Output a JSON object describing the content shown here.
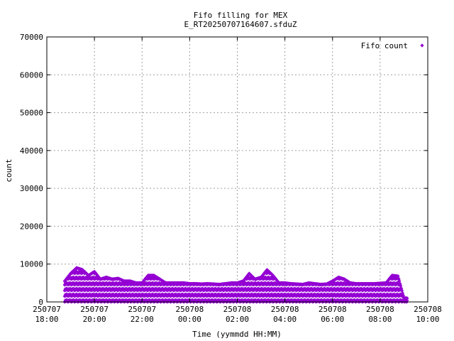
{
  "chart_data": {
    "type": "scatter",
    "title": "Fifo filling for MEX",
    "subtitle": "E_RT20250707164607.sfduZ",
    "xlabel": "Time (yymmdd HH:MM)",
    "ylabel": "count",
    "xlim_hours": [
      18,
      34
    ],
    "ylim": [
      0,
      70000
    ],
    "y_ticks": [
      "0",
      "10000",
      "20000",
      "30000",
      "40000",
      "50000",
      "60000",
      "70000"
    ],
    "x_ticks": [
      {
        "date": "250707",
        "time": "18:00"
      },
      {
        "date": "250707",
        "time": "20:00"
      },
      {
        "date": "250707",
        "time": "22:00"
      },
      {
        "date": "250708",
        "time": "00:00"
      },
      {
        "date": "250708",
        "time": "02:00"
      },
      {
        "date": "250708",
        "time": "04:00"
      },
      {
        "date": "250708",
        "time": "06:00"
      },
      {
        "date": "250708",
        "time": "08:00"
      },
      {
        "date": "250708",
        "time": "10:00"
      }
    ],
    "grid": true,
    "legend_position": "top-right",
    "series": [
      {
        "name": "Fifo count",
        "color": "#9400d3",
        "marker": "diamond",
        "x_hours": [
          18.75,
          19.0,
          19.25,
          19.5,
          19.75,
          20.0,
          20.25,
          20.5,
          20.75,
          21.0,
          21.25,
          21.5,
          21.75,
          22.0,
          22.25,
          22.5,
          22.75,
          23.0,
          23.25,
          23.5,
          23.75,
          24.0,
          24.25,
          24.5,
          24.75,
          25.0,
          25.25,
          25.5,
          25.75,
          26.0,
          26.25,
          26.5,
          26.75,
          27.0,
          27.25,
          27.5,
          27.75,
          28.0,
          28.25,
          28.5,
          28.75,
          29.0,
          29.25,
          29.5,
          29.75,
          30.0,
          30.25,
          30.5,
          30.75,
          31.0,
          31.25,
          31.5,
          31.75,
          32.0,
          32.25,
          32.5,
          32.75,
          33.0
        ],
        "y_max": [
          5500,
          7500,
          9000,
          8500,
          7000,
          8000,
          6000,
          6500,
          6000,
          6200,
          5500,
          5500,
          5000,
          5000,
          7000,
          7000,
          6000,
          5000,
          5000,
          5000,
          5000,
          4800,
          4800,
          4700,
          4800,
          4700,
          4600,
          4800,
          5000,
          5000,
          5500,
          7500,
          6000,
          6500,
          8500,
          7000,
          5000,
          5000,
          4800,
          4700,
          4600,
          5000,
          4800,
          4600,
          4700,
          5500,
          6500,
          6000,
          5000,
          4800,
          4800,
          4800,
          4800,
          4900,
          5000,
          7000,
          6800,
          1000
        ],
        "bands": [
          0,
          1500,
          3000,
          4500,
          6000,
          7500,
          9000
        ]
      }
    ]
  }
}
